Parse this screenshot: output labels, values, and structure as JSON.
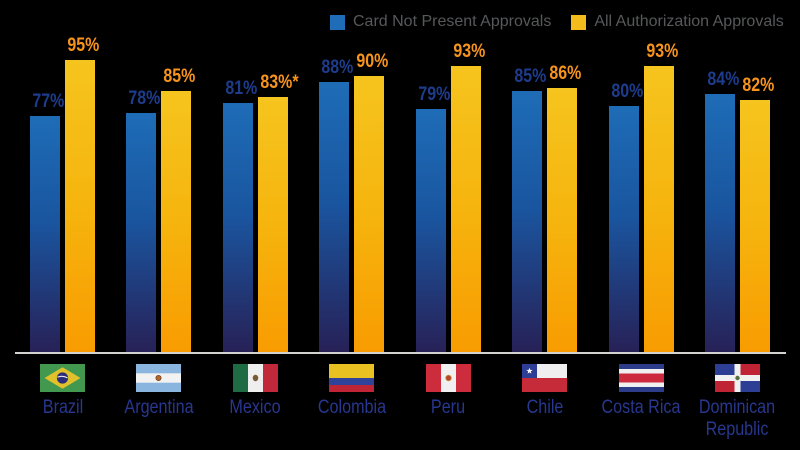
{
  "legend": {
    "items": [
      {
        "label": "Card Not Present Approvals",
        "color": "#1f6db6"
      },
      {
        "label": "All Authorization Approvals",
        "color": "#f3bb1c"
      }
    ]
  },
  "chart_data": {
    "type": "bar",
    "categories": [
      "Brazil",
      "Argentina",
      "Mexico",
      "Colombia",
      "Peru",
      "Chile",
      "Costa Rica",
      "Dominican Republic"
    ],
    "series": [
      {
        "name": "Card Not Present Approvals",
        "values": [
          77,
          78,
          81,
          88,
          79,
          85,
          80,
          84
        ],
        "labels": [
          "77%",
          "78%",
          "81%",
          "88%",
          "79%",
          "85%",
          "80%",
          "84%"
        ],
        "bar_color_top": "#1e6cb7",
        "bar_color_bottom": "#272157",
        "label_color": "#1e3c8c"
      },
      {
        "name": "All Authorization Approvals",
        "values": [
          95,
          85,
          83,
          90,
          93,
          86,
          93,
          82
        ],
        "labels": [
          "95%",
          "85%",
          "83%*",
          "90%",
          "93%",
          "86%",
          "93%",
          "82%"
        ],
        "bar_color_top": "#f6c41e",
        "bar_color_bottom": "#f89c01",
        "label_color": "#f7941d"
      }
    ],
    "ylim": [
      0,
      100
    ],
    "value_unit": "%",
    "background": "#000000",
    "axis_line_color": "#d2d2d0",
    "category_label_color": "#28378f"
  }
}
